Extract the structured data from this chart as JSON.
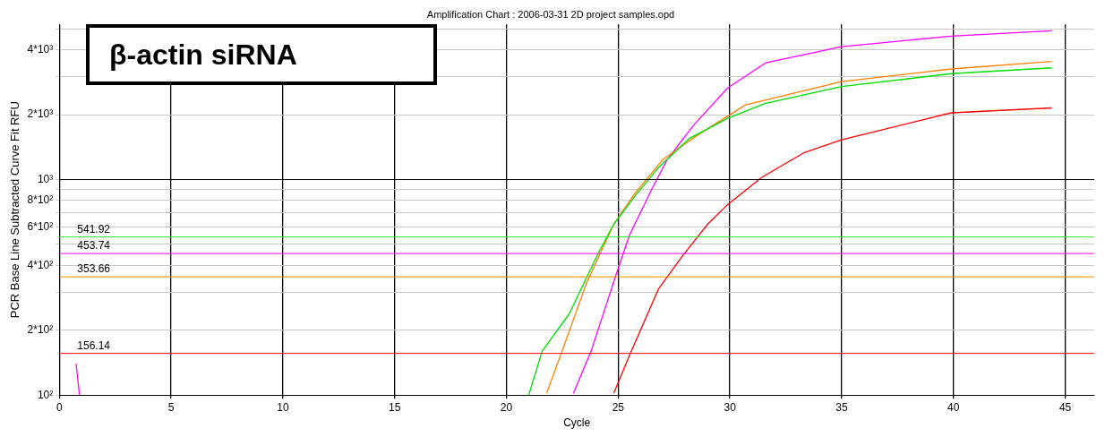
{
  "chart_data": {
    "type": "line",
    "title": "Amplification Chart : 2006-03-31 2D project samples.opd",
    "xlabel": "Cycle",
    "ylabel": "PCR Base Line Subtracted Curve Fit RFU",
    "annotations": [
      "β-actin siRNA"
    ],
    "log": "y",
    "grid": true,
    "legend": false,
    "marker": "none",
    "line_style": "solid",
    "xlim": [
      0,
      46.3
    ],
    "xticks": [
      0,
      5,
      10,
      15,
      20,
      25,
      30,
      35,
      40,
      45
    ],
    "ylim": [
      100,
      5250
    ],
    "yticks": [
      {
        "value": 100,
        "label": "10²"
      },
      {
        "value": 200,
        "label": "2*10²"
      },
      {
        "value": 300,
        "label": null
      },
      {
        "value": 400,
        "label": "4*10²"
      },
      {
        "value": 500,
        "label": null
      },
      {
        "value": 600,
        "label": "6*10²"
      },
      {
        "value": 700,
        "label": null
      },
      {
        "value": 800,
        "label": "8*10²"
      },
      {
        "value": 900,
        "label": null
      },
      {
        "value": 1000,
        "label": "10³"
      },
      {
        "value": 2000,
        "label": "2*10³"
      },
      {
        "value": 3000,
        "label": null
      },
      {
        "value": 4000,
        "label": "4*10³"
      },
      {
        "value": 5000,
        "label": null
      }
    ],
    "series": [
      {
        "color": "#00dd00",
        "x": [
          21.0,
          21.6,
          22.8,
          24.1,
          24.8,
          25.7,
          26.8,
          28.2,
          29.9,
          31.6,
          35,
          39.9,
          44.4
        ],
        "values": [
          100,
          160,
          237,
          453,
          620,
          825,
          1136,
          1556,
          1923,
          2260,
          2700,
          3100,
          3300
        ]
      },
      {
        "color": "#ff8000",
        "x": [
          21.8,
          22.5,
          23.6,
          24.8,
          25.7,
          27.0,
          28.6,
          30.7,
          35,
          39.9,
          44.4
        ],
        "values": [
          102,
          161,
          334,
          620,
          850,
          1240,
          1620,
          2220,
          2850,
          3260,
          3530
        ]
      },
      {
        "color": "#ff00ff",
        "x": [
          23.0,
          23.8,
          24.9,
          25.5,
          26.5,
          27.2,
          28.4,
          29.9,
          31.6,
          35,
          39.9,
          44.4
        ],
        "values": [
          102,
          161,
          360,
          550,
          900,
          1240,
          1800,
          2660,
          3480,
          4140,
          4630,
          4900
        ]
      },
      {
        "color": "#ff00ff",
        "x": [
          0.75,
          0.9
        ],
        "values": [
          140,
          100
        ]
      },
      {
        "color": "#ff0000",
        "x": [
          24.8,
          25.6,
          26.8,
          27.9,
          29.0,
          29.9,
          31.4,
          33.3,
          35,
          39.9,
          44.4
        ],
        "values": [
          102,
          161,
          310,
          445,
          620,
          766,
          1020,
          1330,
          1530,
          2040,
          2150
        ]
      }
    ],
    "ref_lines": [
      {
        "axis": "y",
        "value": 1000,
        "color": "#000000"
      },
      {
        "axis": "y",
        "value": 541.92,
        "label": "541.92",
        "color": "#33ee33"
      },
      {
        "axis": "y",
        "value": 453.74,
        "label": "453.74",
        "color": "#ff00ff"
      },
      {
        "axis": "y",
        "value": 353.66,
        "label": "353.66",
        "color": "#ff8c00"
      },
      {
        "axis": "y",
        "value": 156.14,
        "label": "156.14",
        "color": "#ff0000"
      }
    ]
  }
}
